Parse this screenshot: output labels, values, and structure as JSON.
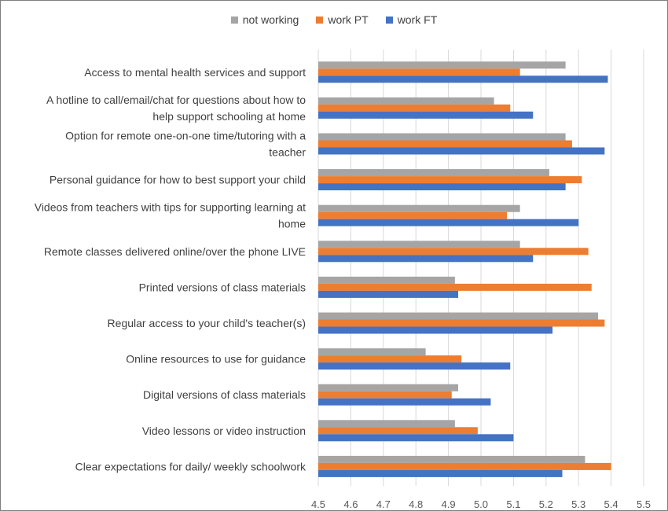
{
  "chart_data": {
    "type": "bar",
    "orientation": "horizontal",
    "categories": [
      "Access to mental health services and support",
      "A hotline to call/email/chat for questions about how to help support schooling at home",
      "Option for remote one-on-one time/tutoring with a teacher",
      "Personal guidance for how to best support your child",
      "Videos from teachers with tips for supporting learning at home",
      "Remote classes delivered online/over the phone LIVE",
      "Printed versions of class materials",
      "Regular access to your child's teacher(s)",
      "Online resources to use for guidance",
      "Digital versions of class materials",
      "Video lessons or video instruction",
      "Clear expectations for daily/ weekly schoolwork"
    ],
    "category_lines": [
      [
        "Access to mental health services and support"
      ],
      [
        "A hotline to call/email/chat for questions about how to",
        "help support schooling at home"
      ],
      [
        "Option for remote one-on-one time/tutoring with a",
        "teacher"
      ],
      [
        "Personal guidance for how to best support your child"
      ],
      [
        "Videos from teachers with tips for supporting learning at",
        "home"
      ],
      [
        "Remote classes delivered online/over the phone LIVE"
      ],
      [
        "Printed versions of class materials"
      ],
      [
        "Regular access to your child's teacher(s)"
      ],
      [
        "Online resources to use for guidance"
      ],
      [
        "Digital versions of class materials"
      ],
      [
        "Video lessons or video instruction"
      ],
      [
        "Clear expectations for daily/ weekly schoolwork"
      ]
    ],
    "series": [
      {
        "name": "not working",
        "color": "#a5a5a5",
        "values": [
          5.26,
          5.04,
          5.26,
          5.21,
          5.12,
          5.12,
          4.92,
          5.36,
          4.83,
          4.93,
          4.92,
          5.32
        ]
      },
      {
        "name": "work PT",
        "color": "#ed7d31",
        "values": [
          5.12,
          5.09,
          5.28,
          5.31,
          5.08,
          5.33,
          5.34,
          5.38,
          4.94,
          4.91,
          4.99,
          5.4
        ]
      },
      {
        "name": "work FT",
        "color": "#4472c4",
        "values": [
          5.39,
          5.16,
          5.38,
          5.26,
          5.3,
          5.16,
          4.93,
          5.22,
          5.09,
          5.03,
          5.1,
          5.25
        ]
      }
    ],
    "xlim": [
      4.5,
      5.5
    ],
    "xticks": [
      "4.5",
      "4.6",
      "4.7",
      "4.8",
      "4.9",
      "5.0",
      "5.1",
      "5.2",
      "5.3",
      "5.4",
      "5.5"
    ],
    "title": "",
    "xlabel": "",
    "ylabel": "",
    "grid": "vertical",
    "legend_position": "top"
  }
}
